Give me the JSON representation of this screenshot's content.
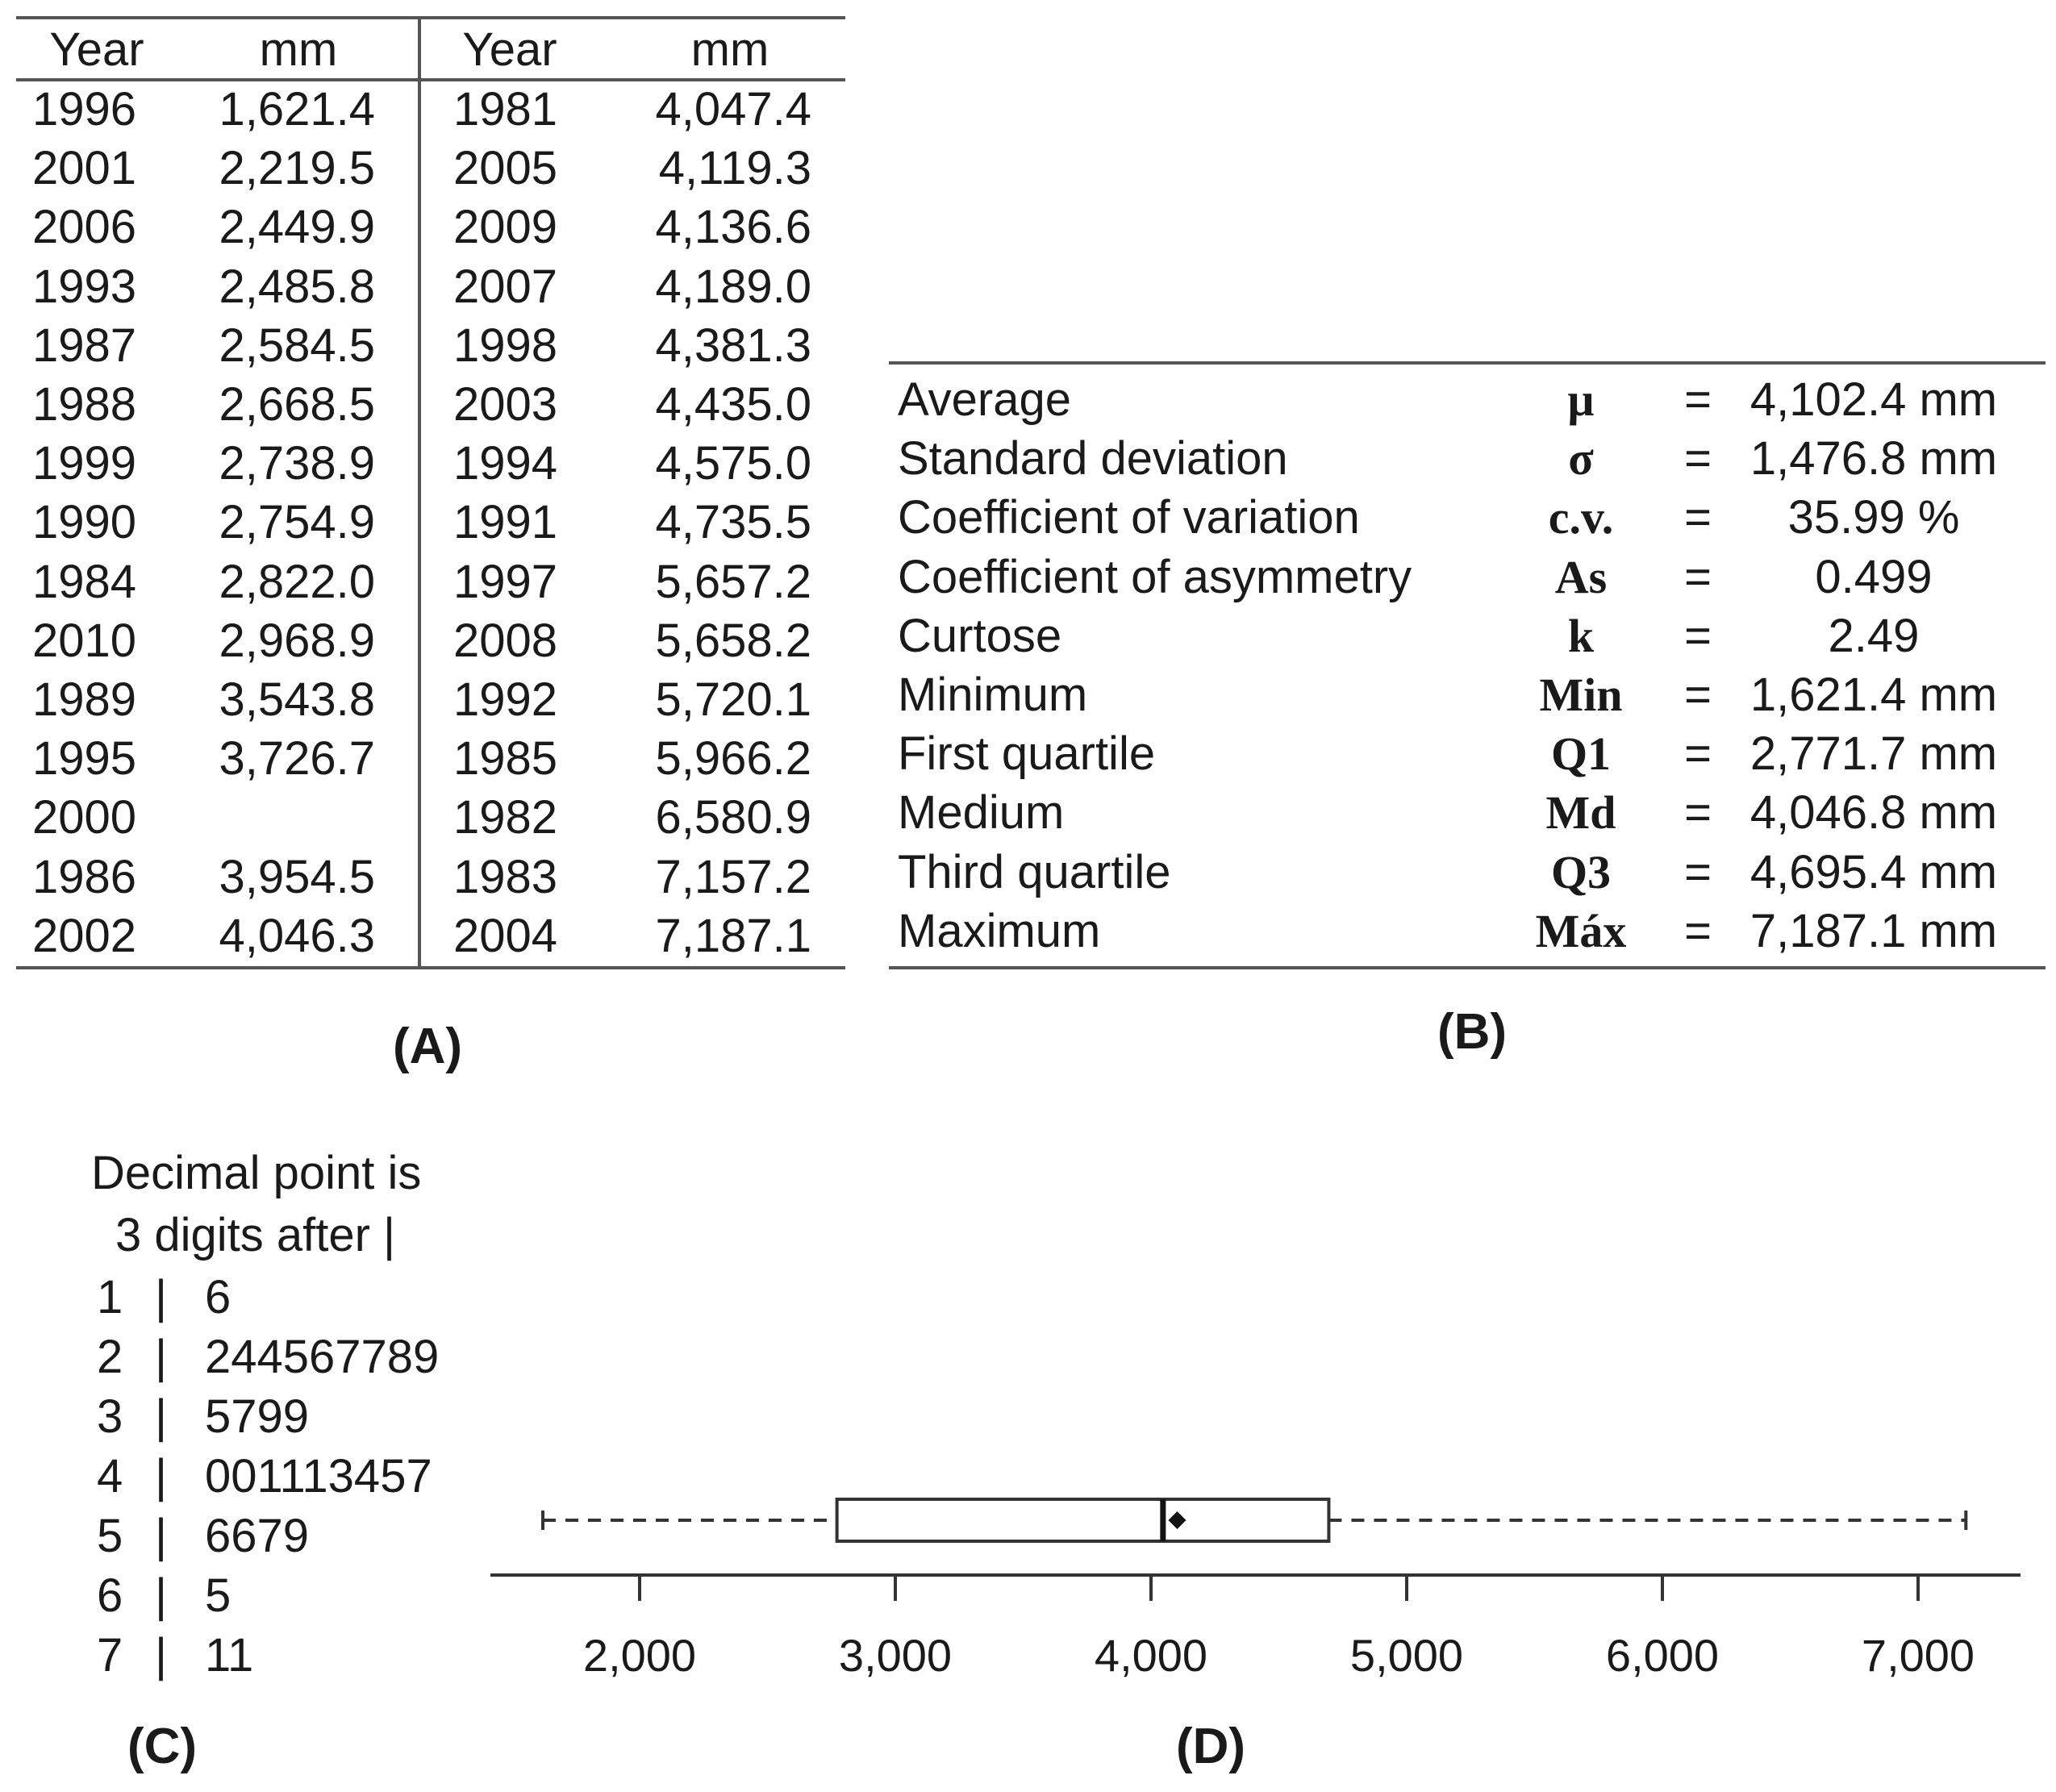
{
  "panel_a": {
    "label": "(A)",
    "headers": [
      "Year",
      "mm",
      "Year",
      "mm"
    ],
    "rows": [
      [
        "1996",
        "1,621.4",
        "1981",
        "4,047.4"
      ],
      [
        "2001",
        "2,219.5",
        "2005",
        "4,119.3"
      ],
      [
        "2006",
        "2,449.9",
        "2009",
        "4,136.6"
      ],
      [
        "1993",
        "2,485.8",
        "2007",
        "4,189.0"
      ],
      [
        "1987",
        "2,584.5",
        "1998",
        "4,381.3"
      ],
      [
        "1988",
        "2,668.5",
        "2003",
        "4,435.0"
      ],
      [
        "1999",
        "2,738.9",
        "1994",
        "4,575.0"
      ],
      [
        "1990",
        "2,754.9",
        "1991",
        "4,735.5"
      ],
      [
        "1984",
        "2,822.0",
        "1997",
        "5,657.2"
      ],
      [
        "2010",
        "2,968.9",
        "2008",
        "5,658.2"
      ],
      [
        "1989",
        "3,543.8",
        "1992",
        "5,720.1"
      ],
      [
        "1995",
        "3,726.7",
        "1985",
        "5,966.2"
      ],
      [
        "2000",
        "",
        "1982",
        "6,580.9"
      ],
      [
        "1986",
        "3,954.5",
        "1983",
        "7,157.2"
      ],
      [
        "2002",
        "4,046.3",
        "2004",
        "7,187.1"
      ]
    ]
  },
  "panel_b": {
    "label": "(B)",
    "rows": [
      {
        "name": "Average",
        "symbol": "μ",
        "eq": "=",
        "value": "4,102.4 mm"
      },
      {
        "name": "Standard deviation",
        "symbol": "σ",
        "eq": "=",
        "value": "1,476.8 mm"
      },
      {
        "name": "Coefficient of variation",
        "symbol": "c.v.",
        "eq": "=",
        "value": "35.99 %"
      },
      {
        "name": "Coefficient of asymmetry",
        "symbol": "As",
        "eq": "=",
        "value": "0.499"
      },
      {
        "name": "Curtose",
        "symbol": "k",
        "eq": "=",
        "value": "2.49"
      },
      {
        "name": "Minimum",
        "symbol": "Min",
        "eq": "=",
        "value": "1,621.4 mm"
      },
      {
        "name": "First quartile",
        "symbol": "Q1",
        "eq": "=",
        "value": "2,771.7 mm"
      },
      {
        "name": "Medium",
        "symbol": "Md",
        "eq": "=",
        "value": "4,046.8 mm"
      },
      {
        "name": "Third quartile",
        "symbol": "Q3",
        "eq": "=",
        "value": "4,695.4 mm"
      },
      {
        "name": "Maximum",
        "symbol": "Máx",
        "eq": "=",
        "value": "7,187.1 mm"
      }
    ]
  },
  "panel_c": {
    "label": "(C)",
    "title_line1": "Decimal point is",
    "title_line2": "3 digits after |",
    "sep": "|",
    "stems": [
      {
        "stem": "1",
        "leaves": "6"
      },
      {
        "stem": "2",
        "leaves": "244567789"
      },
      {
        "stem": "3",
        "leaves": "5799"
      },
      {
        "stem": "4",
        "leaves": "001113457"
      },
      {
        "stem": "5",
        "leaves": "6679"
      },
      {
        "stem": "6",
        "leaves": "5"
      },
      {
        "stem": "7",
        "leaves": "11"
      }
    ]
  },
  "chart_data": {
    "type": "boxplot",
    "label": "(D)",
    "orientation": "horizontal",
    "min": 1621.4,
    "q1": 2771.7,
    "median": 4046.8,
    "mean": 4102.4,
    "q3": 4695.4,
    "max": 7187.1,
    "xlim": [
      1420,
      7400
    ],
    "ticks": [
      2000,
      3000,
      4000,
      5000,
      6000,
      7000
    ],
    "tick_labels": [
      "2,000",
      "3,000",
      "4,000",
      "5,000",
      "6,000",
      "7,000"
    ],
    "whisker_style": "dashed"
  }
}
